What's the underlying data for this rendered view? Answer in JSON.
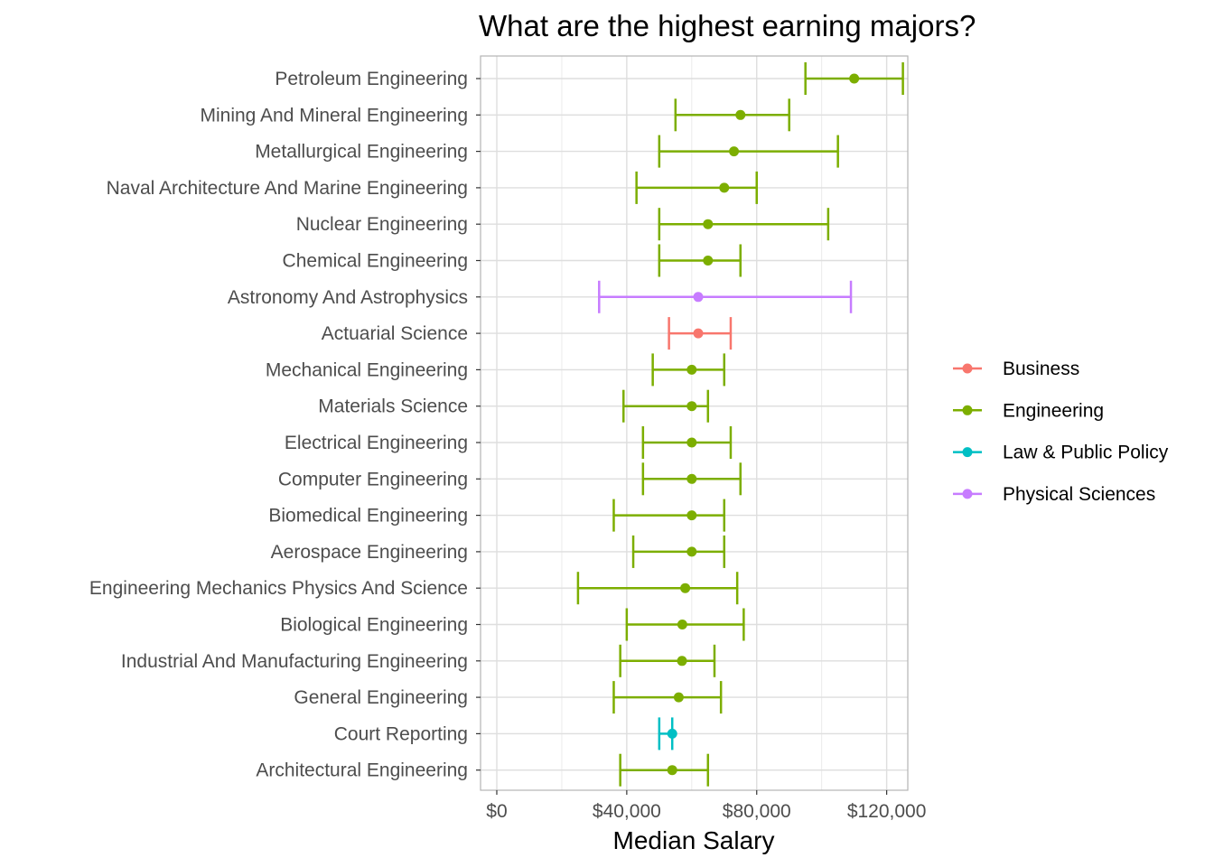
{
  "chart_data": {
    "type": "scatter",
    "title": "What are the highest earning majors?",
    "xlabel": "Median Salary",
    "ylabel": "",
    "xlim": [
      -5000,
      126500
    ],
    "x_ticks": [
      0,
      40000,
      80000,
      120000
    ],
    "x_tick_labels": [
      "$0",
      "$40,000",
      "$80,000",
      "$120,000"
    ],
    "grid": true,
    "legend_position": "right",
    "series": [
      {
        "name": "Business",
        "color": "#F8766D"
      },
      {
        "name": "Engineering",
        "color": "#7CAE00"
      },
      {
        "name": "Law & Public Policy",
        "color": "#00BFC4"
      },
      {
        "name": "Physical Sciences",
        "color": "#C77CFF"
      }
    ],
    "points": [
      {
        "major": "Petroleum Engineering",
        "category": "Engineering",
        "median": 110000,
        "low": 95000,
        "high": 125000
      },
      {
        "major": "Mining And Mineral Engineering",
        "category": "Engineering",
        "median": 75000,
        "low": 55000,
        "high": 90000
      },
      {
        "major": "Metallurgical Engineering",
        "category": "Engineering",
        "median": 73000,
        "low": 50000,
        "high": 105000
      },
      {
        "major": "Naval Architecture And Marine Engineering",
        "category": "Engineering",
        "median": 70000,
        "low": 43000,
        "high": 80000
      },
      {
        "major": "Nuclear Engineering",
        "category": "Engineering",
        "median": 65000,
        "low": 50000,
        "high": 102000
      },
      {
        "major": "Chemical Engineering",
        "category": "Engineering",
        "median": 65000,
        "low": 50000,
        "high": 75000
      },
      {
        "major": "Astronomy And Astrophysics",
        "category": "Physical Sciences",
        "median": 62000,
        "low": 31500,
        "high": 109000
      },
      {
        "major": "Actuarial Science",
        "category": "Business",
        "median": 62000,
        "low": 53000,
        "high": 72000
      },
      {
        "major": "Mechanical Engineering",
        "category": "Engineering",
        "median": 60000,
        "low": 48000,
        "high": 70000
      },
      {
        "major": "Materials Science",
        "category": "Engineering",
        "median": 60000,
        "low": 39000,
        "high": 65000
      },
      {
        "major": "Electrical Engineering",
        "category": "Engineering",
        "median": 60000,
        "low": 45000,
        "high": 72000
      },
      {
        "major": "Computer Engineering",
        "category": "Engineering",
        "median": 60000,
        "low": 45000,
        "high": 75000
      },
      {
        "major": "Biomedical Engineering",
        "category": "Engineering",
        "median": 60000,
        "low": 36000,
        "high": 70000
      },
      {
        "major": "Aerospace Engineering",
        "category": "Engineering",
        "median": 60000,
        "low": 42000,
        "high": 70000
      },
      {
        "major": "Engineering Mechanics Physics And Science",
        "category": "Engineering",
        "median": 58000,
        "low": 25000,
        "high": 74000
      },
      {
        "major": "Biological Engineering",
        "category": "Engineering",
        "median": 57100,
        "low": 40000,
        "high": 76000
      },
      {
        "major": "Industrial And Manufacturing Engineering",
        "category": "Engineering",
        "median": 57000,
        "low": 38000,
        "high": 67000
      },
      {
        "major": "General Engineering",
        "category": "Engineering",
        "median": 56000,
        "low": 36000,
        "high": 69000
      },
      {
        "major": "Court Reporting",
        "category": "Law & Public Policy",
        "median": 54000,
        "low": 50000,
        "high": 54000
      },
      {
        "major": "Architectural Engineering",
        "category": "Engineering",
        "median": 54000,
        "low": 38000,
        "high": 65000
      }
    ]
  }
}
